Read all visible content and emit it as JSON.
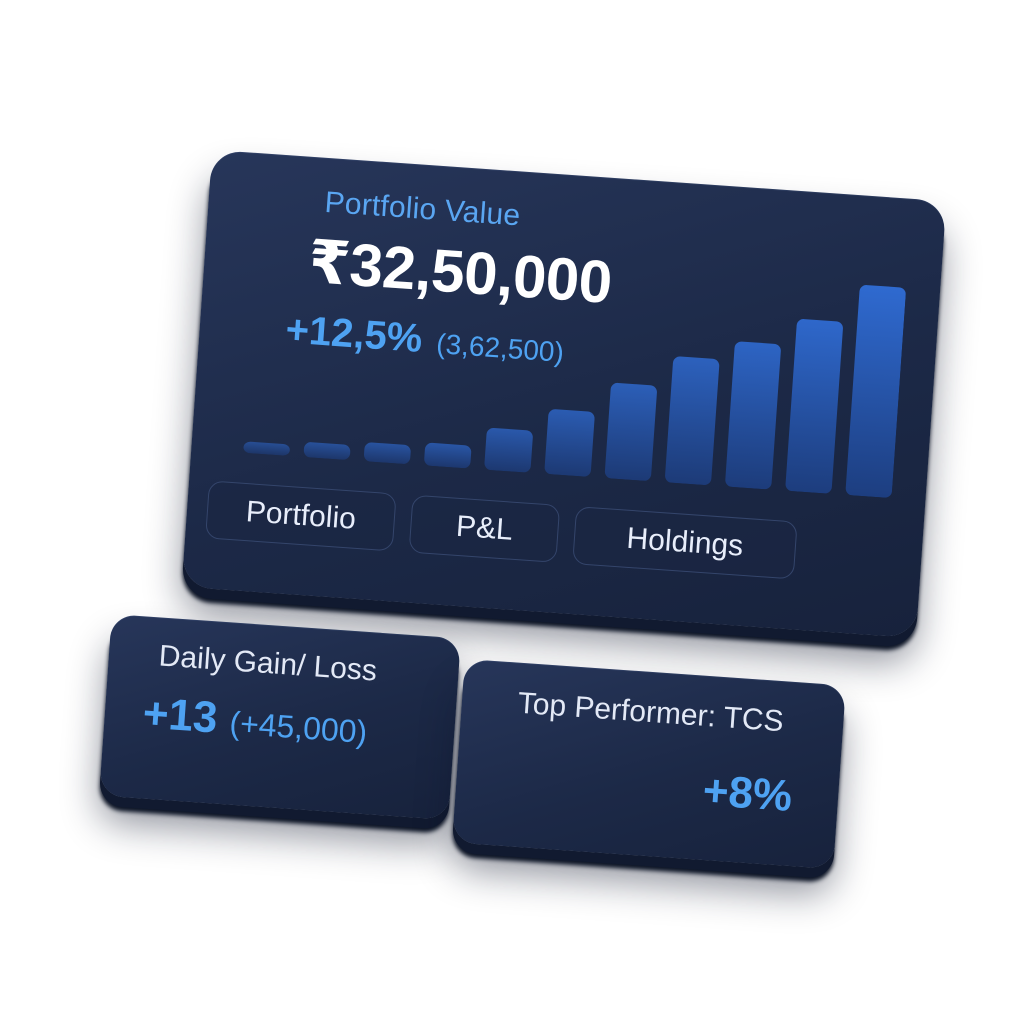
{
  "portfolio_card": {
    "label": "Portfolio Value",
    "value": "₹32,50,000",
    "change_pct": "+12,5%",
    "change_abs": "(3,62,500)"
  },
  "tabs": [
    "Portfolio",
    "P&L",
    "Holdings"
  ],
  "daily_card": {
    "label": "Daily Gain/ Loss",
    "value": "+13",
    "value_detail": "(+45,000)"
  },
  "top_card": {
    "label": "Top Performer: TCS",
    "value": "+8%"
  },
  "colors": {
    "card_bg": "#1c2947",
    "accent_blue": "#4ea2f2",
    "bar_blue": "#2f6ad0",
    "text_white": "#ffffff"
  },
  "chart_data": {
    "type": "bar",
    "categories": [
      "",
      "",
      "",
      "",
      "",
      "",
      "",
      "",
      "",
      "",
      ""
    ],
    "values": [
      6,
      8,
      10,
      12,
      22,
      34,
      50,
      66,
      76,
      90,
      110
    ],
    "title": "",
    "xlabel": "",
    "ylabel": "",
    "ylim": [
      0,
      120
    ]
  }
}
